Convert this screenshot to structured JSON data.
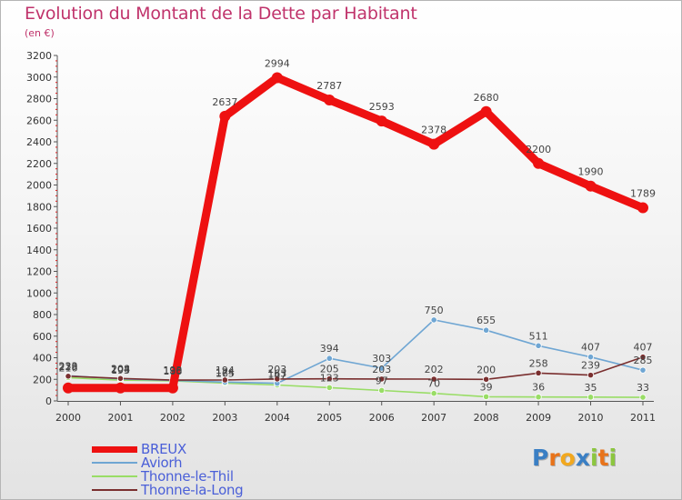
{
  "title": "Evolution du Montant de la Dette par Habitant",
  "subtitle": "(en €)",
  "logo": {
    "letters": [
      "P",
      "r",
      "o",
      "x",
      "i",
      "t",
      "i"
    ],
    "colors": [
      "#3a7fc4",
      "#e8731a",
      "#f2a81e",
      "#3a7fc4",
      "#8cc63f",
      "#e8731a",
      "#8cc63f"
    ]
  },
  "chart_data": {
    "type": "line",
    "title": "Evolution du Montant de la Dette par Habitant",
    "ylabel": "(en €)",
    "xlabel": "",
    "ylim": [
      0,
      3200
    ],
    "y_ticks": [
      0,
      200,
      400,
      600,
      800,
      1000,
      1200,
      1400,
      1600,
      1800,
      2000,
      2200,
      2400,
      2600,
      2800,
      3000,
      3200
    ],
    "categories": [
      "2000",
      "2001",
      "2002",
      "2003",
      "2004",
      "2005",
      "2006",
      "2007",
      "2008",
      "2009",
      "2010",
      "2011"
    ],
    "grid": false,
    "legend_position": "bottom-left",
    "series": [
      {
        "name": "Thonne-le-Thil",
        "color": "#99dd66",
        "values": [
          216,
          193,
          186,
          165,
          147,
          123,
          97,
          70,
          39,
          36,
          35,
          33
        ],
        "labels": [
          "216",
          "193",
          "186",
          "165",
          "147",
          "123",
          "97",
          "70",
          "39",
          "36",
          "35",
          "33"
        ]
      },
      {
        "name": "Aviorh",
        "color": "#6fa6d3",
        "values": [
          233,
          204,
          190,
          174,
          163,
          394,
          303,
          750,
          655,
          511,
          407,
          285
        ],
        "labels": [
          "233",
          "204",
          "190",
          "174",
          "163",
          "394",
          "303",
          "750",
          "655",
          "511",
          "407",
          "285"
        ]
      },
      {
        "name": "Thonne-la-Long",
        "color": "#7a2f2f",
        "values": [
          229,
          208,
          193,
          194,
          203,
          205,
          203,
          202,
          200,
          258,
          239,
          407
        ],
        "labels": [
          "229",
          "208",
          "193",
          "194",
          "203",
          "205",
          "203",
          "202",
          "200",
          "258",
          "239",
          "407"
        ]
      },
      {
        "name": "BREUX",
        "color": "#ee1111",
        "values": [
          120,
          120,
          120,
          2637,
          2994,
          2787,
          2593,
          2378,
          2680,
          2200,
          1990,
          1789
        ],
        "labels": [
          "",
          "",
          "",
          "2637",
          "2994",
          "2787",
          "2593",
          "2378",
          "2680",
          "2200",
          "1990",
          "1789"
        ]
      }
    ],
    "legend": [
      {
        "name": "BREUX",
        "color": "#ee1111"
      },
      {
        "name": "Aviorh",
        "color": "#6fa6d3"
      },
      {
        "name": "Thonne-le-Thil",
        "color": "#99dd66"
      },
      {
        "name": "Thonne-la-Long",
        "color": "#7a2f2f"
      }
    ]
  }
}
